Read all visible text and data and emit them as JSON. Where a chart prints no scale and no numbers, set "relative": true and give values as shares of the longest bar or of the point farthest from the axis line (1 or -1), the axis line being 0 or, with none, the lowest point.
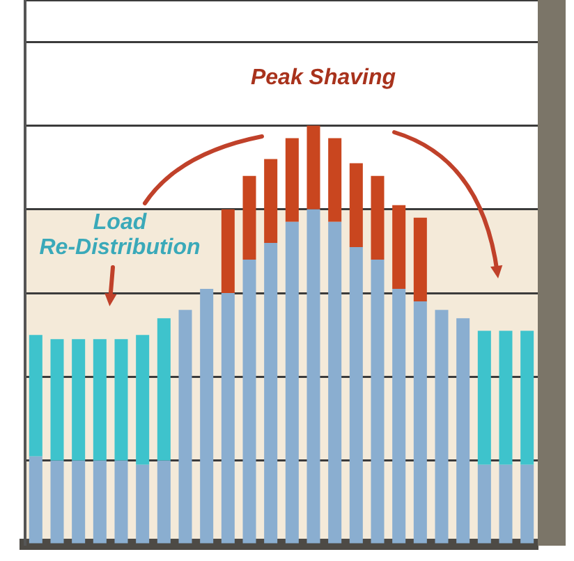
{
  "chart_data": {
    "type": "bar",
    "relative": true,
    "stacked": true,
    "grid": "y",
    "legend": false,
    "categories": [
      null,
      null,
      null,
      null,
      null,
      null,
      null,
      null,
      null,
      null,
      null,
      null,
      null,
      null,
      null,
      null,
      null,
      null,
      null,
      null,
      null,
      null,
      null,
      null
    ],
    "series": [
      {
        "color": "#8aaed0",
        "values": [
          0.21,
          0.2,
          0.2,
          0.2,
          0.2,
          0.19,
          0.2,
          0.56,
          0.61,
          0.6,
          0.68,
          0.72,
          0.77,
          0.8,
          0.77,
          0.71,
          0.68,
          0.61,
          0.58,
          0.56,
          0.54,
          0.19,
          0.19,
          0.19
        ]
      },
      {
        "color": "#3ec3cc",
        "values": [
          0.29,
          0.29,
          0.29,
          0.29,
          0.29,
          0.31,
          0.34,
          null,
          null,
          null,
          null,
          null,
          null,
          null,
          null,
          null,
          null,
          null,
          null,
          null,
          null,
          0.32,
          0.32,
          0.32
        ]
      },
      {
        "color": "#c9461f",
        "values": [
          null,
          null,
          null,
          null,
          null,
          null,
          null,
          null,
          null,
          0.2,
          0.2,
          0.2,
          0.2,
          0.2,
          0.2,
          0.2,
          0.2,
          0.2,
          0.2,
          null,
          null,
          null,
          null,
          null
        ]
      }
    ],
    "bands": [
      {
        "axis": "y",
        "from": 0,
        "to": 0.8,
        "color": "#f4ead9"
      }
    ],
    "annotations": [
      "Peak Shaving",
      "Load\nRe-Distribution"
    ]
  }
}
